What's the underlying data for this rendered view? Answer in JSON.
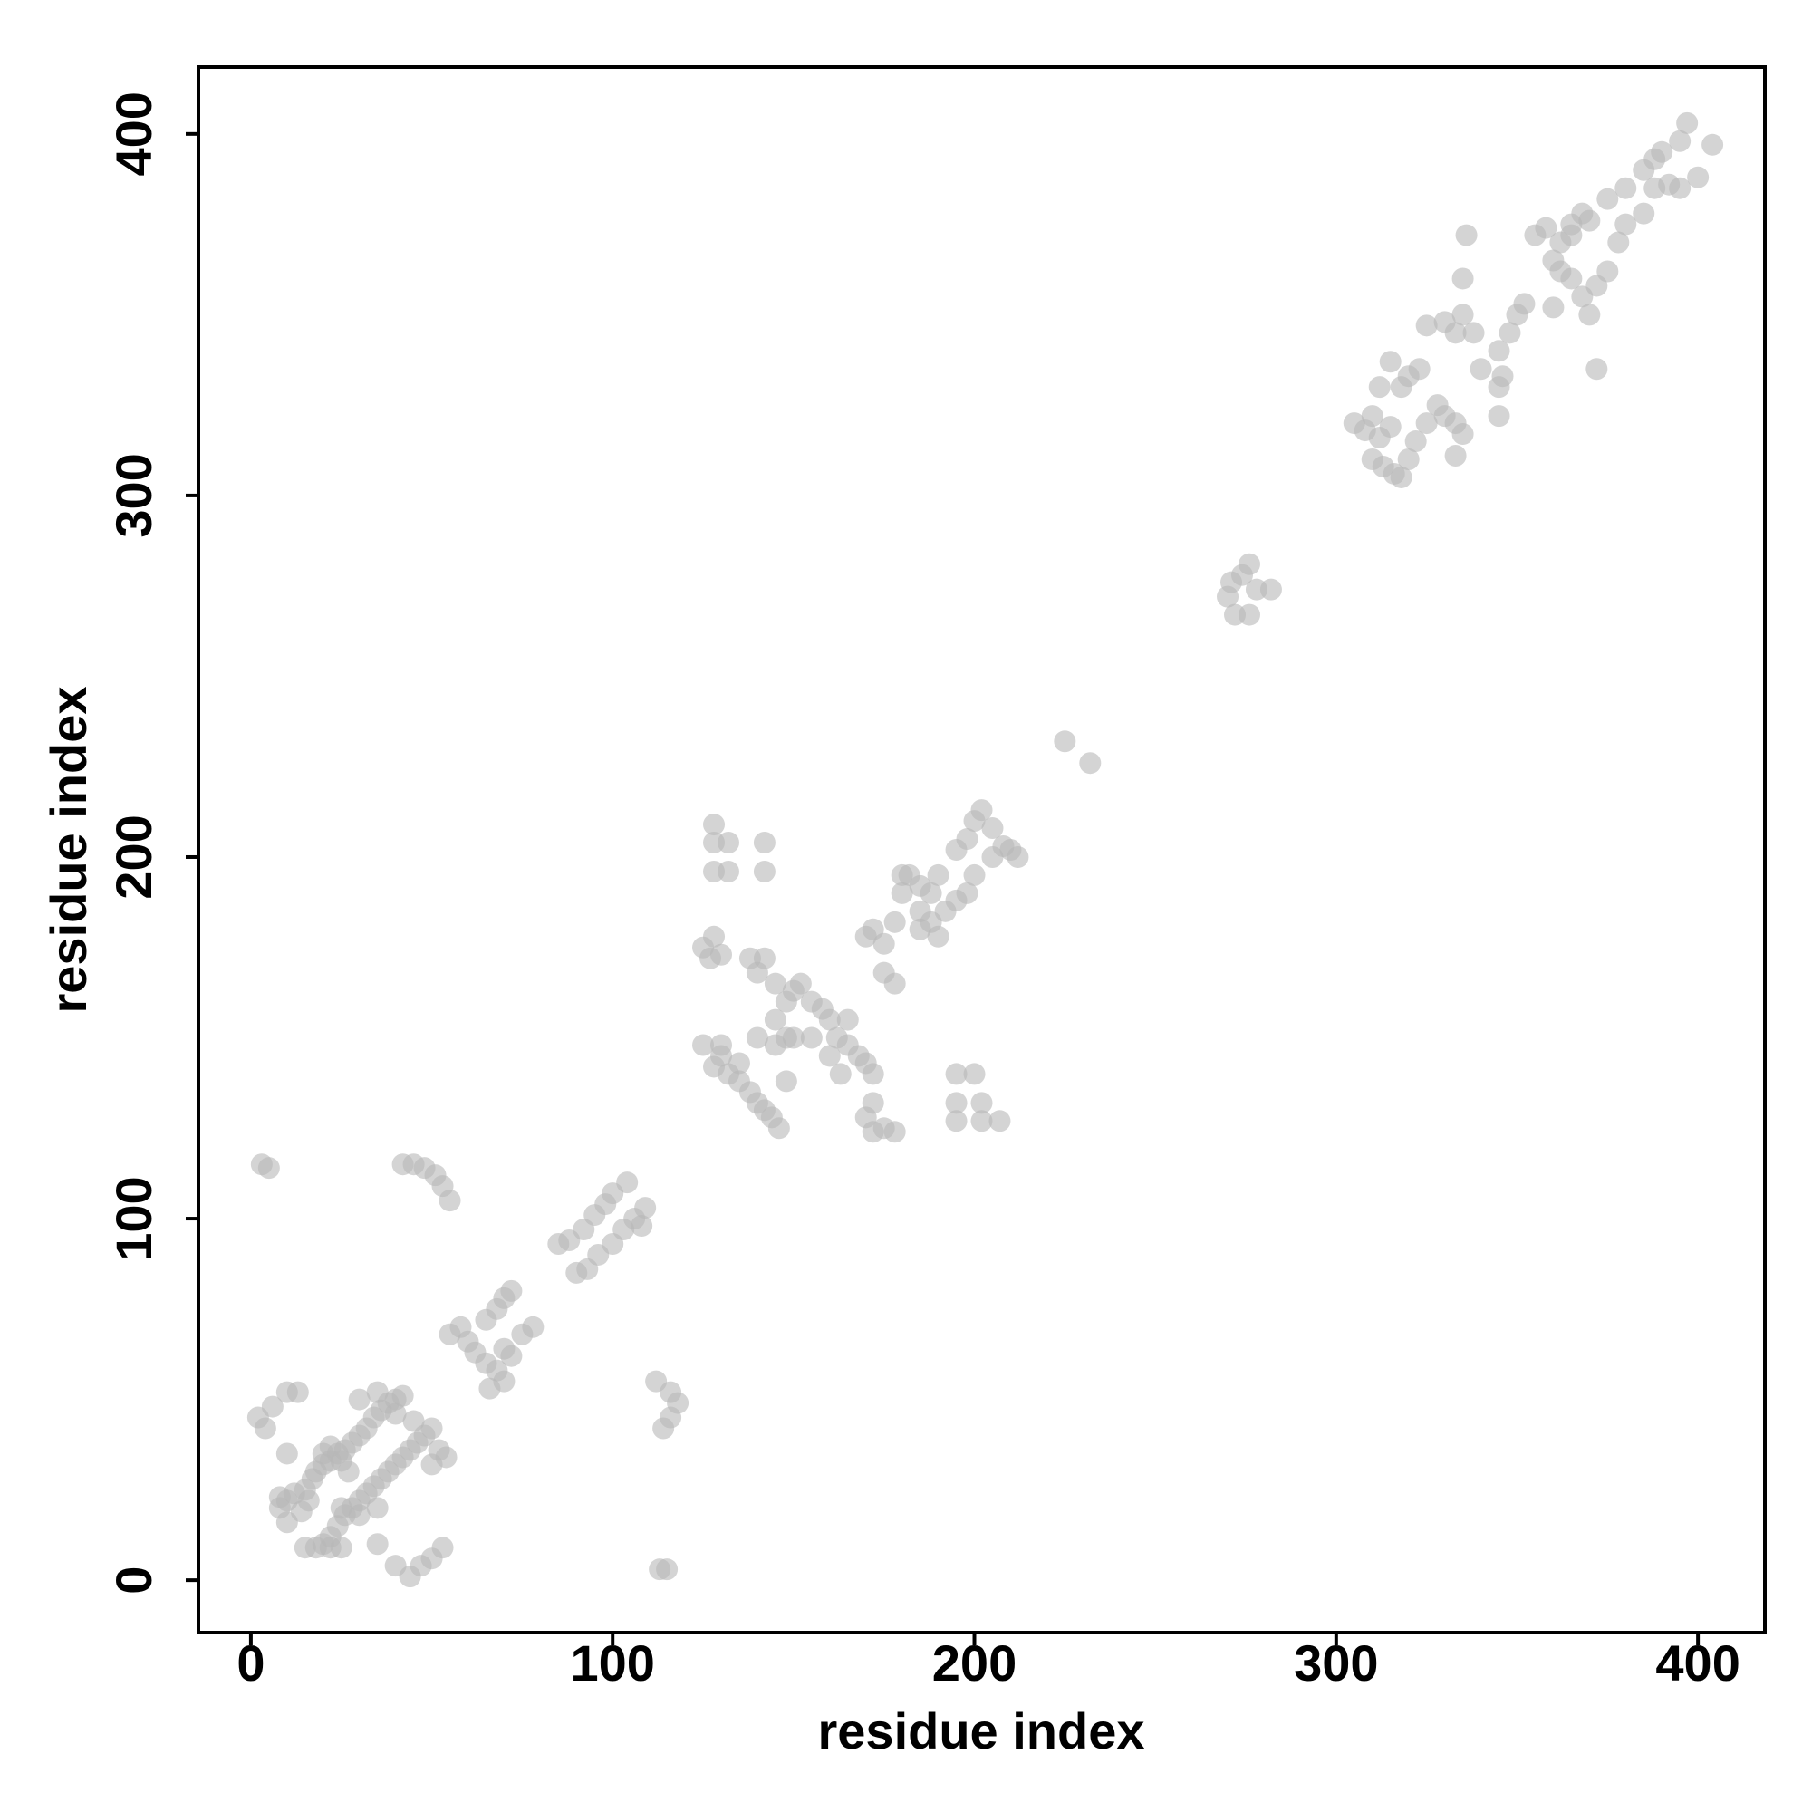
{
  "chart_data": {
    "type": "scatter",
    "xlabel": "residue index",
    "ylabel": "residue index",
    "xlim": [
      -14.5,
      418.5
    ],
    "ylim": [
      -14.5,
      418.5
    ],
    "xticks": [
      0,
      100,
      200,
      300,
      400
    ],
    "yticks": [
      0,
      100,
      200,
      300,
      400
    ],
    "color": "#b8b8b8",
    "alpha": 0.6,
    "grid": false,
    "x": [
      10,
      12,
      15,
      17,
      18,
      20,
      22,
      24,
      26,
      28,
      30,
      32,
      34,
      36,
      38,
      40,
      42,
      35,
      30,
      20,
      22,
      25,
      27,
      16,
      14,
      8,
      8,
      10,
      20,
      22,
      24,
      26,
      28,
      30,
      32,
      34,
      36,
      38,
      40,
      42,
      44,
      46,
      48,
      50,
      52,
      54,
      50,
      45,
      40,
      30,
      25,
      35,
      2,
      4,
      6,
      10,
      13,
      10,
      15,
      18,
      22,
      25,
      35,
      40,
      44,
      47,
      50,
      53,
      113,
      115,
      3,
      5,
      42,
      45,
      48,
      51,
      53,
      55,
      112,
      116,
      118,
      116,
      114,
      55,
      58,
      60,
      62,
      65,
      68,
      70,
      72,
      68,
      70,
      65,
      72,
      75,
      78,
      66,
      70,
      85,
      88,
      92,
      95,
      98,
      100,
      104,
      90,
      93,
      96,
      100,
      103,
      106,
      109,
      108,
      130,
      132,
      135,
      138,
      140,
      142,
      144,
      146,
      145,
      148,
      135,
      130,
      125,
      128,
      140,
      145,
      148,
      150,
      152,
      155,
      158,
      160,
      162,
      165,
      168,
      170,
      172,
      150,
      155,
      145,
      140,
      142,
      138,
      125,
      127,
      130,
      128,
      128,
      128,
      132,
      128,
      132,
      142,
      142,
      170,
      172,
      175,
      178,
      172,
      195,
      200,
      195,
      195,
      202,
      202,
      207,
      165,
      160,
      163,
      148,
      170,
      172,
      175,
      178,
      180,
      182,
      185,
      188,
      190,
      195,
      198,
      200,
      202,
      205,
      175,
      178,
      185,
      188,
      190,
      192,
      195,
      198,
      200,
      205,
      208,
      210,
      212,
      180,
      185,
      225,
      232,
      270,
      271,
      276,
      274,
      272,
      276,
      278,
      282,
      305,
      308,
      310,
      312,
      315,
      318,
      320,
      323,
      312,
      315,
      325,
      330,
      333,
      335,
      338,
      345,
      340,
      345,
      346,
      348,
      350,
      352,
      310,
      313,
      316,
      318,
      320,
      322,
      325,
      328,
      330,
      333,
      335,
      333,
      345,
      336,
      335,
      355,
      358,
      362,
      365,
      368,
      370,
      375,
      380,
      385,
      388,
      390,
      395,
      397,
      360,
      362,
      365,
      368,
      370,
      372,
      375,
      378,
      380,
      385,
      388,
      392,
      395,
      400,
      404,
      372,
      360,
      365
    ],
    "y": [
      22,
      24,
      25,
      28,
      30,
      32,
      33,
      35,
      36,
      38,
      40,
      42,
      45,
      47,
      49,
      50,
      51,
      52,
      50,
      35,
      37,
      33,
      30,
      22,
      19,
      20,
      23,
      16,
      10,
      12,
      15,
      18,
      20,
      22,
      24,
      26,
      28,
      30,
      32,
      34,
      36,
      38,
      40,
      42,
      36,
      34,
      32,
      44,
      46,
      18,
      20,
      20,
      45,
      42,
      48,
      52,
      52,
      35,
      9,
      9,
      9,
      9,
      10,
      4,
      1,
      4,
      6,
      9,
      3,
      3,
      115,
      114,
      115,
      115,
      114,
      112,
      109,
      105,
      55,
      52,
      49,
      45,
      42,
      68,
      70,
      66,
      63,
      72,
      75,
      78,
      80,
      58,
      55,
      60,
      62,
      68,
      70,
      53,
      64,
      93,
      94,
      97,
      101,
      104,
      107,
      110,
      85,
      86,
      90,
      93,
      97,
      100,
      103,
      98,
      145,
      140,
      138,
      135,
      132,
      130,
      128,
      125,
      148,
      138,
      143,
      148,
      148,
      142,
      150,
      155,
      160,
      163,
      165,
      160,
      158,
      155,
      150,
      148,
      145,
      143,
      140,
      150,
      150,
      165,
      168,
      172,
      172,
      175,
      172,
      173,
      178,
      209,
      204,
      204,
      196,
      196,
      204,
      196,
      128,
      124,
      125,
      124,
      132,
      140,
      140,
      132,
      127,
      132,
      127,
      127,
      155,
      145,
      140,
      150,
      178,
      180,
      176,
      182,
      190,
      195,
      192,
      190,
      195,
      202,
      205,
      210,
      213,
      208,
      168,
      165,
      180,
      182,
      178,
      185,
      188,
      190,
      195,
      200,
      203,
      202,
      200,
      195,
      185,
      232,
      226,
      272,
      276,
      281,
      278,
      267,
      267,
      274,
      274,
      320,
      318,
      322,
      316,
      319,
      330,
      333,
      335,
      330,
      337,
      347,
      348,
      345,
      350,
      345,
      340,
      335,
      330,
      333,
      345,
      350,
      353,
      310,
      308,
      306,
      305,
      310,
      315,
      320,
      325,
      322,
      320,
      317,
      311,
      322,
      372,
      360,
      372,
      374,
      370,
      375,
      378,
      376,
      382,
      385,
      390,
      393,
      395,
      398,
      403,
      365,
      362,
      360,
      355,
      350,
      358,
      362,
      370,
      375,
      378,
      385,
      386,
      385,
      388,
      397,
      335,
      352,
      372
    ]
  }
}
